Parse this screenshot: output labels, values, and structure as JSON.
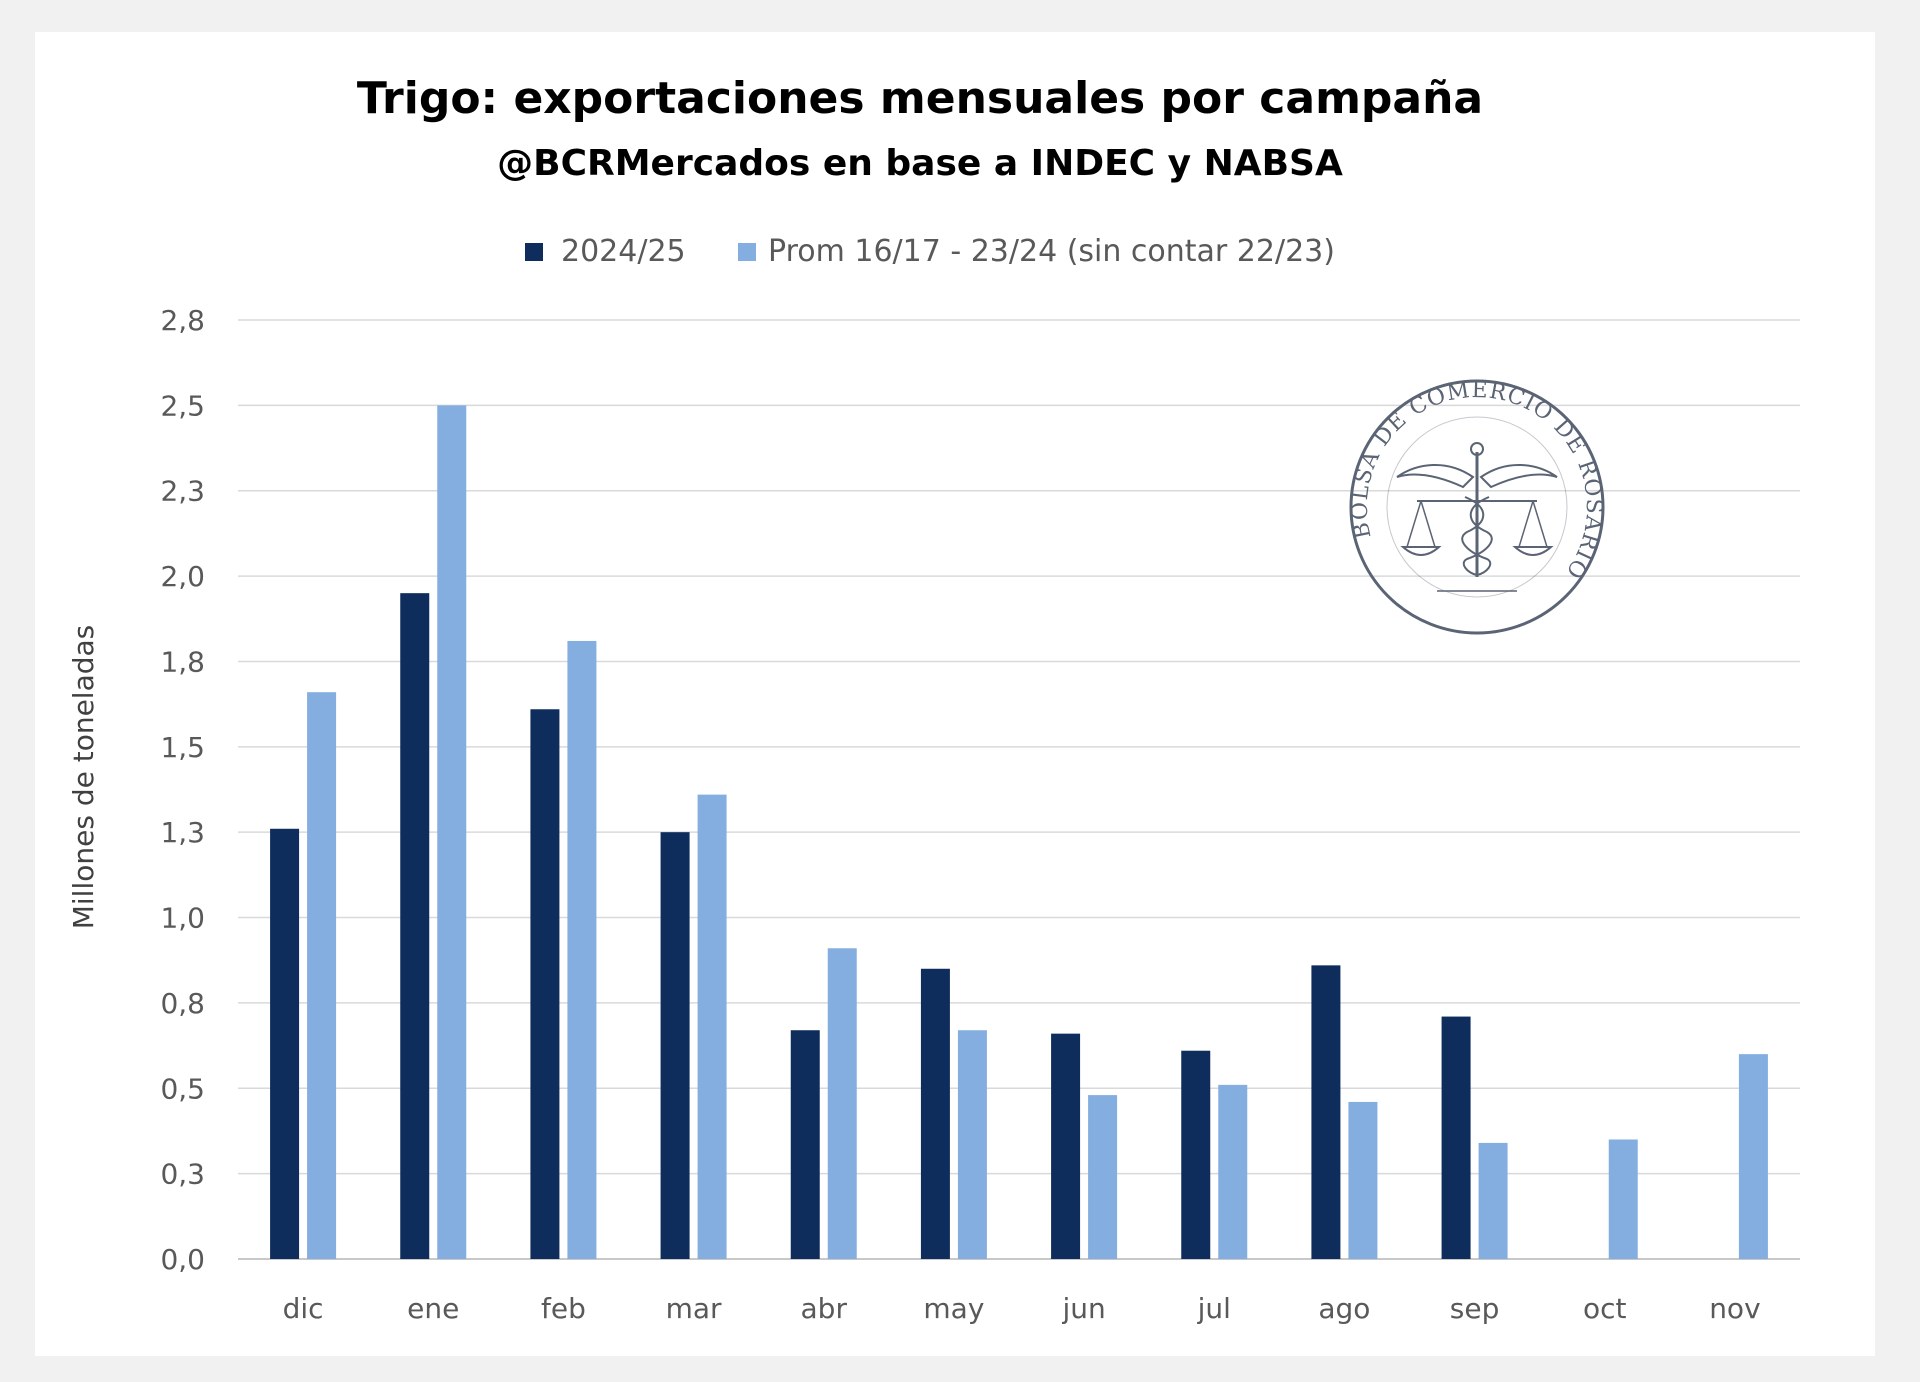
{
  "chart_data": {
    "type": "bar",
    "title": "Trigo: exportaciones mensuales por campaña",
    "subtitle": "@BCRMercados en base a INDEC y NABSA",
    "ylabel": "Millones de toneladas",
    "xlabel": "",
    "ylim": [
      0,
      2.75
    ],
    "ytick_values": [
      0,
      0.25,
      0.5,
      0.75,
      1.0,
      1.25,
      1.5,
      1.75,
      2.0,
      2.25,
      2.5,
      2.75
    ],
    "ytick_labels": [
      "0,0",
      "0,3",
      "0,5",
      "0,8",
      "1,0",
      "1,3",
      "1,5",
      "1,8",
      "2,0",
      "2,3",
      "2,5",
      "2,8"
    ],
    "categories": [
      "dic",
      "ene",
      "feb",
      "mar",
      "abr",
      "may",
      "jun",
      "jul",
      "ago",
      "sep",
      "oct",
      "nov"
    ],
    "series": [
      {
        "name": "2024/25",
        "color": "#0e2d5c",
        "values": [
          1.26,
          1.95,
          1.61,
          1.25,
          0.67,
          0.85,
          0.66,
          0.61,
          0.86,
          0.71,
          null,
          null
        ]
      },
      {
        "name": "Prom 16/17 - 23/24 (sin contar 22/23)",
        "color": "#84aee0",
        "values": [
          1.66,
          2.5,
          1.81,
          1.36,
          0.91,
          0.67,
          0.48,
          0.51,
          0.46,
          0.34,
          0.35,
          0.6
        ]
      }
    ],
    "legend_position": "top",
    "grid": true
  },
  "watermark": {
    "text": "BOLSA DE COMERCIO DE ROSARIO",
    "color": "#5a6474"
  }
}
